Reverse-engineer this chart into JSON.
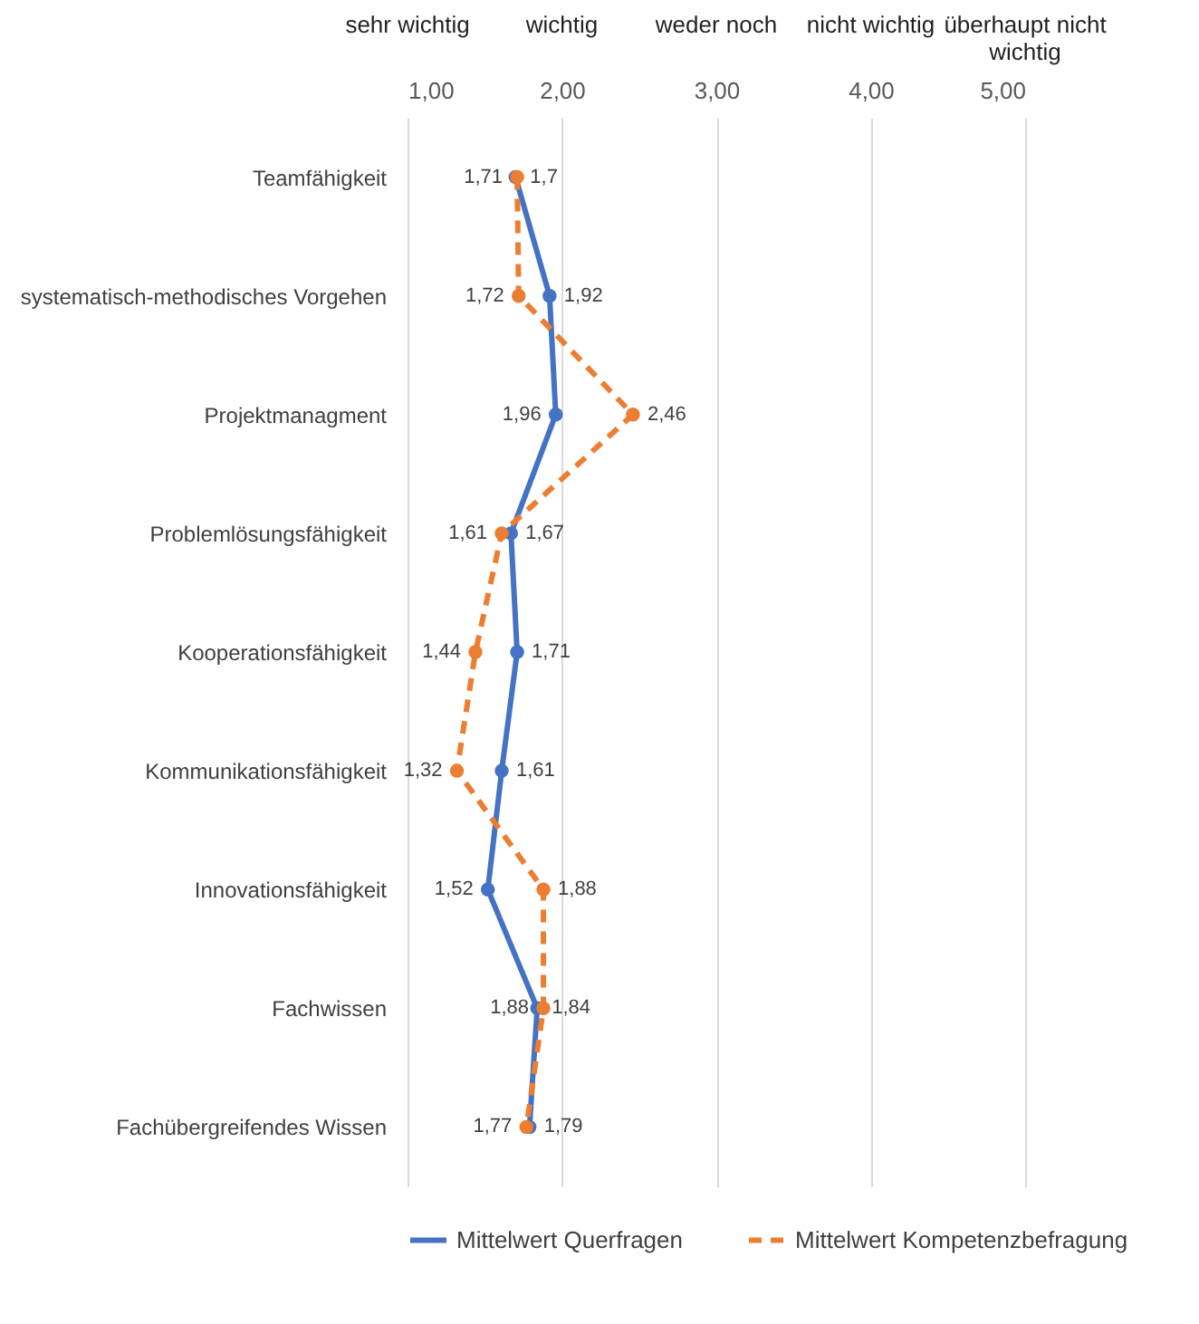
{
  "chart_data": {
    "type": "line",
    "orientation": "horizontal",
    "categories": [
      "Teamfähigkeit",
      "systematisch-methodisches Vorgehen",
      "Projektmanagment",
      "Problemlösungsfähigkeit",
      "Kooperationsfähigkeit",
      "Kommunikationsfähigkeit",
      "Innovationsfähigkeit",
      "Fachwissen",
      "Fachübergreifendes Wissen"
    ],
    "series": [
      {
        "name": "Mittelwert Querfragen",
        "color": "#4472c4",
        "line_style": "solid",
        "values": [
          1.7,
          1.92,
          1.96,
          1.67,
          1.71,
          1.61,
          1.52,
          1.84,
          1.79
        ],
        "value_labels": [
          "1,7",
          "1,92",
          "1,96",
          "1,67",
          "1,71",
          "1,61",
          "1,52",
          "1,84",
          "1,79"
        ]
      },
      {
        "name": "Mittelwert Kompetenzbefragung",
        "color": "#ed7d31",
        "line_style": "dashed",
        "values": [
          1.71,
          1.72,
          2.46,
          1.61,
          1.44,
          1.32,
          1.88,
          1.88,
          1.77
        ],
        "value_labels": [
          "1,71",
          "1,72",
          "2,46",
          "1,61",
          "1,44",
          "1,32",
          "1,88",
          "1,88",
          "1,77"
        ]
      }
    ],
    "xlim": [
      1,
      5
    ],
    "xticks": [
      {
        "value": 1,
        "label": "1,00"
      },
      {
        "value": 2,
        "label": "2,00"
      },
      {
        "value": 3,
        "label": "3,00"
      },
      {
        "value": 4,
        "label": "4,00"
      },
      {
        "value": 5,
        "label": "5,00"
      }
    ],
    "annotations": [
      "sehr wichtig",
      "wichtig",
      "weder noch",
      "nicht wichtig",
      "überhaupt nicht wichtig"
    ],
    "grid": "x",
    "marker": "circle",
    "legend": "bottom"
  }
}
